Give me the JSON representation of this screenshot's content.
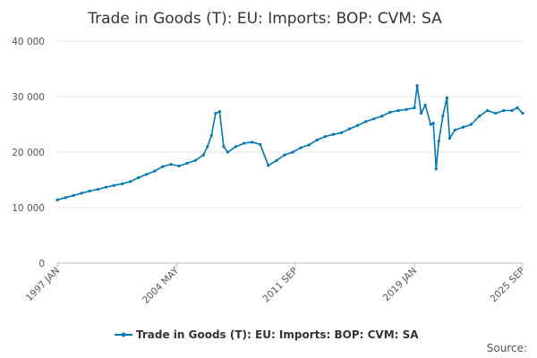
{
  "chart_data": {
    "type": "line",
    "title": "Trade in Goods (T): EU: Imports: BOP: CVM: SA",
    "xlabel": "",
    "ylabel": "",
    "x_range": [
      "1997-01",
      "2025-09"
    ],
    "x_ticks": [
      "1997 JAN",
      "2004 MAY",
      "2011 SEP",
      "2019 JAN",
      "2025 SEP"
    ],
    "ylim": [
      0,
      40000
    ],
    "y_ticks": [
      0,
      10000,
      20000,
      30000,
      40000
    ],
    "y_tick_labels": [
      "0",
      "10 000",
      "20 000",
      "30 000",
      "40 000"
    ],
    "grid": true,
    "legend_position": "bottom",
    "series": [
      {
        "name": "Trade in Goods (T): EU: Imports: BOP: CVM: SA",
        "color": "#0077b5",
        "points": [
          [
            "1997-01",
            11400
          ],
          [
            "1997-07",
            11800
          ],
          [
            "1998-01",
            12200
          ],
          [
            "1998-07",
            12600
          ],
          [
            "1999-01",
            13000
          ],
          [
            "1999-07",
            13300
          ],
          [
            "2000-01",
            13700
          ],
          [
            "2000-07",
            14000
          ],
          [
            "2001-01",
            14300
          ],
          [
            "2001-07",
            14700
          ],
          [
            "2002-01",
            15400
          ],
          [
            "2002-07",
            16000
          ],
          [
            "2003-01",
            16600
          ],
          [
            "2003-07",
            17400
          ],
          [
            "2004-01",
            17800
          ],
          [
            "2004-07",
            17500
          ],
          [
            "2005-01",
            18000
          ],
          [
            "2005-07",
            18500
          ],
          [
            "2006-01",
            19500
          ],
          [
            "2006-04",
            21000
          ],
          [
            "2006-07",
            23000
          ],
          [
            "2006-10",
            27000
          ],
          [
            "2007-01",
            27300
          ],
          [
            "2007-04",
            21000
          ],
          [
            "2007-07",
            20000
          ],
          [
            "2008-01",
            21000
          ],
          [
            "2008-07",
            21600
          ],
          [
            "2009-01",
            21800
          ],
          [
            "2009-07",
            21400
          ],
          [
            "2010-01",
            17600
          ],
          [
            "2010-07",
            18500
          ],
          [
            "2011-01",
            19500
          ],
          [
            "2011-07",
            20000
          ],
          [
            "2012-01",
            20800
          ],
          [
            "2012-07",
            21300
          ],
          [
            "2013-01",
            22200
          ],
          [
            "2013-07",
            22800
          ],
          [
            "2014-01",
            23200
          ],
          [
            "2014-07",
            23500
          ],
          [
            "2015-01",
            24200
          ],
          [
            "2015-07",
            24800
          ],
          [
            "2016-01",
            25500
          ],
          [
            "2016-07",
            26000
          ],
          [
            "2017-01",
            26500
          ],
          [
            "2017-07",
            27200
          ],
          [
            "2018-01",
            27500
          ],
          [
            "2018-07",
            27700
          ],
          [
            "2019-01",
            28000
          ],
          [
            "2019-03",
            32000
          ],
          [
            "2019-06",
            27000
          ],
          [
            "2019-09",
            28500
          ],
          [
            "2020-01",
            25000
          ],
          [
            "2020-03",
            25200
          ],
          [
            "2020-05",
            17000
          ],
          [
            "2020-07",
            22000
          ],
          [
            "2020-10",
            26500
          ],
          [
            "2021-01",
            29800
          ],
          [
            "2021-03",
            22500
          ],
          [
            "2021-07",
            24000
          ],
          [
            "2022-01",
            24500
          ],
          [
            "2022-07",
            25000
          ],
          [
            "2023-01",
            26500
          ],
          [
            "2023-07",
            27500
          ],
          [
            "2024-01",
            27000
          ],
          [
            "2024-07",
            27500
          ],
          [
            "2025-01",
            27500
          ],
          [
            "2025-05",
            28000
          ],
          [
            "2025-09",
            27000
          ]
        ]
      }
    ],
    "source_label": "Source:"
  }
}
